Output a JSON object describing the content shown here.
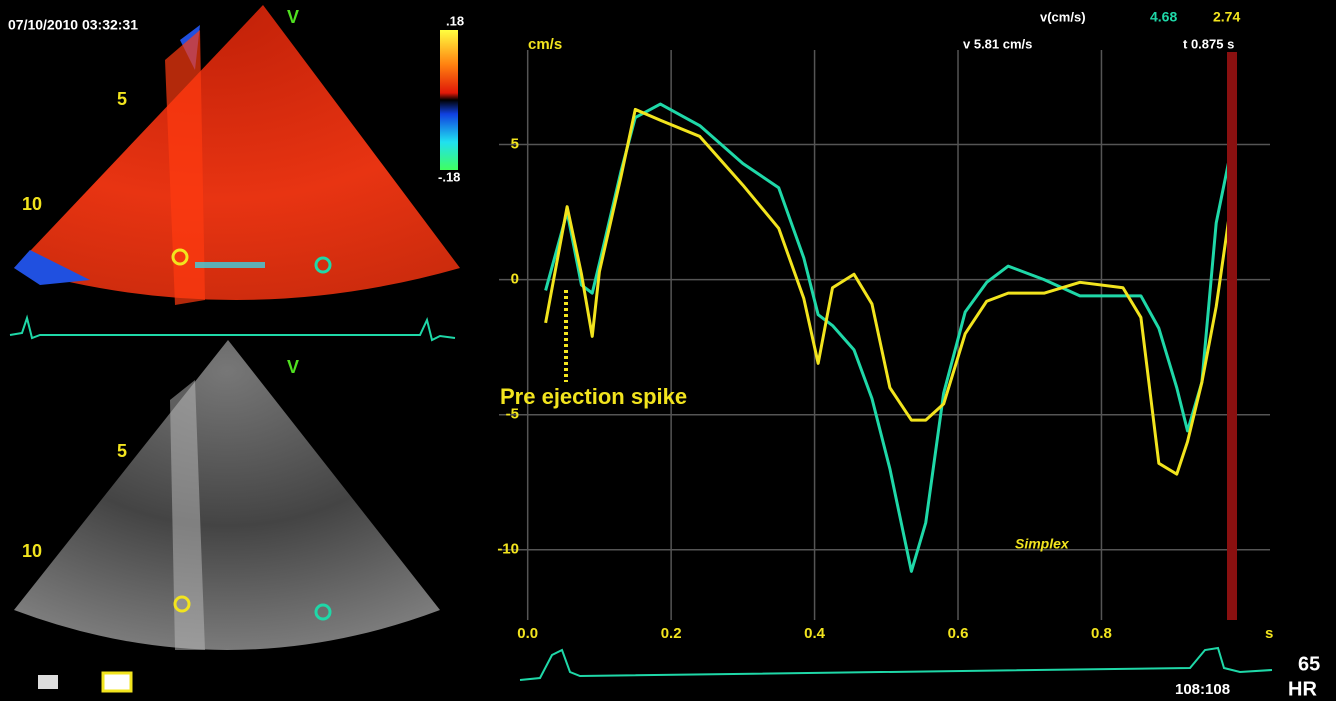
{
  "chart_data": {
    "type": "line",
    "y_unit": "cm/s",
    "x_unit": "s",
    "x": [
      0.025,
      0.055,
      0.075,
      0.09,
      0.1,
      0.13,
      0.15,
      0.185,
      0.24,
      0.3,
      0.35,
      0.385,
      0.405,
      0.425,
      0.455,
      0.48,
      0.505,
      0.535,
      0.555,
      0.58,
      0.61,
      0.64,
      0.67,
      0.72,
      0.77,
      0.83,
      0.855,
      0.88,
      0.905,
      0.92,
      0.94,
      0.96,
      0.98
    ],
    "series": [
      {
        "color": "#1fd8a8",
        "values": [
          -0.4,
          2.5,
          -0.2,
          -0.5,
          0.6,
          4.0,
          6.0,
          6.5,
          5.7,
          4.3,
          3.4,
          0.8,
          -1.3,
          -1.7,
          -2.6,
          -4.4,
          -7.0,
          -10.8,
          -9.0,
          -4.2,
          -1.2,
          -0.1,
          0.5,
          0.0,
          -0.6,
          -0.6,
          -0.6,
          -1.8,
          -4.0,
          -5.6,
          -3.8,
          2.1,
          4.7
        ]
      },
      {
        "color": "#f2e41e",
        "values": [
          -1.6,
          2.7,
          0.2,
          -2.1,
          0.3,
          3.8,
          6.3,
          5.9,
          5.3,
          3.5,
          1.9,
          -0.7,
          -3.1,
          -0.3,
          0.2,
          -0.9,
          -4.0,
          -5.2,
          -5.2,
          -4.6,
          -2.0,
          -0.8,
          -0.5,
          -0.5,
          -0.1,
          -0.3,
          -1.4,
          -6.8,
          -7.2,
          -6.0,
          -3.8,
          -1.0,
          2.7
        ]
      }
    ],
    "xlim": [
      -0.04,
      1.035
    ],
    "ylim": [
      -12.6,
      8.5
    ],
    "xticks": [
      {
        "value": 0,
        "label": "0.0"
      },
      0.2,
      0.4,
      0.6,
      0.8
    ],
    "yticks": [
      5,
      0,
      -5,
      -10
    ],
    "grid": true,
    "readout": {
      "label": "v(cm/s)",
      "value_a": "4.68",
      "value_b": "2.74",
      "velocity": "v 5.81 cm/s",
      "time": "t 0.875 s"
    },
    "annotation": "Pre ejection spike",
    "watermark": "Simplex"
  },
  "panels": {
    "timestamp": "07/10/2010 03:32:31",
    "mode_top": "V",
    "mode_bottom": "V",
    "scale_max": ".18",
    "scale_min": "-.18",
    "depth_top": [
      "5",
      "10"
    ],
    "depth_bottom": [
      "5",
      "10"
    ]
  },
  "footer": {
    "hr_value": "65",
    "hr_label": "HR",
    "ratio": "108:108"
  }
}
